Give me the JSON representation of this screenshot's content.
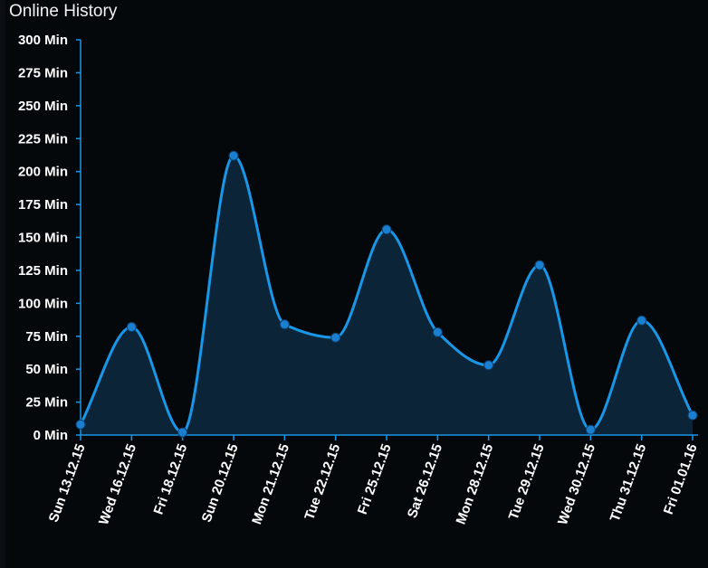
{
  "chart_data": {
    "type": "area",
    "title": "Online History",
    "xlabel": "",
    "ylabel": "",
    "categories": [
      "Sun 13.12.15",
      "Wed 16.12.15",
      "Fri 18.12.15",
      "Sun 20.12.15",
      "Mon 21.12.15",
      "Tue 22.12.15",
      "Fri 25.12.15",
      "Sat 26.12.15",
      "Mon 28.12.15",
      "Tue 29.12.15",
      "Wed 30.12.15",
      "Thu 31.12.15",
      "Fri 01.01.16"
    ],
    "values": [
      8,
      82,
      2,
      212,
      84,
      74,
      156,
      78,
      53,
      129,
      4,
      87,
      15
    ],
    "ylim": [
      0,
      300
    ],
    "yticks": [
      {
        "value": 0,
        "label": "0 Min"
      },
      {
        "value": 25,
        "label": "25 Min"
      },
      {
        "value": 50,
        "label": "50 Min"
      },
      {
        "value": 75,
        "label": "75 Min"
      },
      {
        "value": 100,
        "label": "100 Min"
      },
      {
        "value": 125,
        "label": "125 Min"
      },
      {
        "value": 150,
        "label": "150 Min"
      },
      {
        "value": 175,
        "label": "175 Min"
      },
      {
        "value": 200,
        "label": "200 Min"
      },
      {
        "value": 225,
        "label": "225 Min"
      },
      {
        "value": 250,
        "label": "250 Min"
      },
      {
        "value": 275,
        "label": "275 Min"
      },
      {
        "value": 300,
        "label": "300 Min"
      }
    ],
    "grid": false,
    "legend": "none",
    "colors": {
      "line": "#1a96e6",
      "area": "#0b2438",
      "point": "#1a7fd0",
      "axis": "#1a96e6",
      "background": "#05080b"
    }
  }
}
